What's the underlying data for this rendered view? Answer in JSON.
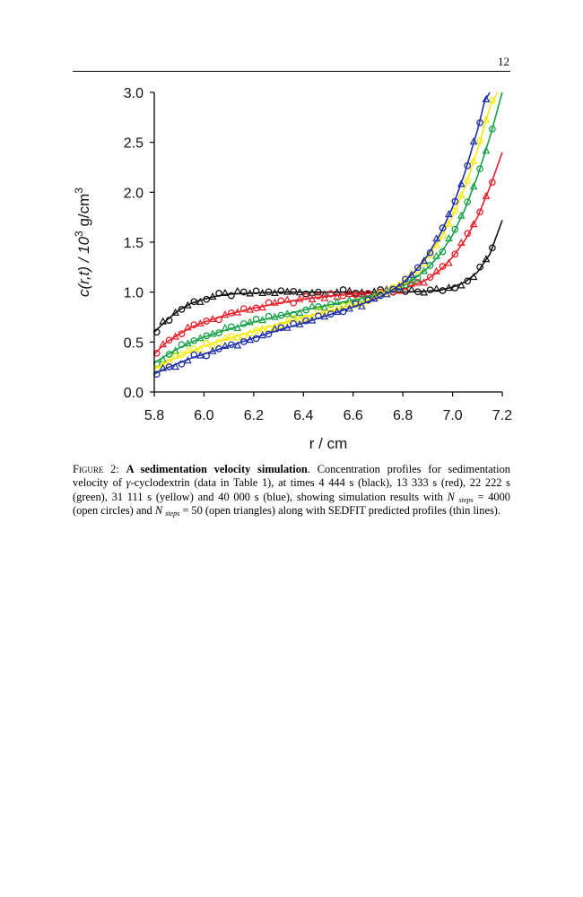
{
  "page": {
    "number": "12"
  },
  "figure": {
    "caption": {
      "label": "Figure 2:",
      "title": "A sedimentation velocity simulation",
      "text_part1": ". Concentration profiles for sedimentation velocity of ",
      "greek": "γ",
      "text_part2": "-cyclodextrin (data in Table 1), at times 4 444 s (black), 13 333 s (red), 22 222 s (green), 31 111 s (yellow) and 40 000 s (blue), showing simulation results with ",
      "n1": "N",
      "sub1": "steps",
      "text_part3": " = 4000 (open circles) and ",
      "n2": "N",
      "sub2": "steps",
      "text_part4": " = 50 (open triangles) along with SEDFIT predicted profiles (thin lines)."
    }
  },
  "chart_data": {
    "type": "line",
    "xlabel": "r / cm",
    "ylabel_main": "c(r,t)  / 10",
    "ylabel_sup": "3",
    "ylabel_unit": " g/cm",
    "ylabel_unit_sup": "3",
    "xlim": [
      5.8,
      7.2
    ],
    "ylim": [
      0.0,
      3.0
    ],
    "xticks": [
      "5.8",
      "6.0",
      "6.2",
      "6.4",
      "6.6",
      "6.8",
      "7.0",
      "7.2"
    ],
    "yticks": [
      "0.0",
      "0.5",
      "1.0",
      "1.5",
      "2.0",
      "2.5",
      "3.0"
    ],
    "legend": "none",
    "markers": {
      "open_circles": "N_steps = 4000",
      "open_triangles": "N_steps = 50",
      "thin_lines": "SEDFIT predicted profiles"
    },
    "series": [
      {
        "name": "4 444 s",
        "color": "#111111",
        "x": [
          5.8,
          5.85,
          5.9,
          5.95,
          6.0,
          6.05,
          6.1,
          6.2,
          6.3,
          6.4,
          6.5,
          6.6,
          6.7,
          6.8,
          6.9,
          6.95,
          7.0,
          7.05,
          7.1,
          7.15,
          7.2
        ],
        "y": [
          0.6,
          0.72,
          0.82,
          0.89,
          0.93,
          0.96,
          0.98,
          0.99,
          1.0,
          1.0,
          1.0,
          1.0,
          1.0,
          1.0,
          1.01,
          1.02,
          1.05,
          1.1,
          1.2,
          1.38,
          1.72
        ]
      },
      {
        "name": "13 333 s",
        "color": "#e8202a",
        "x": [
          5.8,
          5.85,
          5.9,
          5.95,
          6.0,
          6.1,
          6.2,
          6.3,
          6.4,
          6.5,
          6.6,
          6.7,
          6.8,
          6.9,
          6.95,
          7.0,
          7.05,
          7.1,
          7.15,
          7.2
        ],
        "y": [
          0.38,
          0.5,
          0.58,
          0.65,
          0.7,
          0.78,
          0.84,
          0.89,
          0.93,
          0.96,
          0.98,
          0.99,
          1.03,
          1.13,
          1.22,
          1.35,
          1.52,
          1.75,
          2.05,
          2.4
        ]
      },
      {
        "name": "22 222 s",
        "color": "#16a046",
        "x": [
          5.8,
          5.85,
          5.9,
          5.95,
          6.0,
          6.1,
          6.2,
          6.3,
          6.4,
          6.5,
          6.6,
          6.7,
          6.8,
          6.85,
          6.9,
          6.95,
          7.0,
          7.05,
          7.1,
          7.15,
          7.2
        ],
        "y": [
          0.29,
          0.37,
          0.44,
          0.5,
          0.55,
          0.63,
          0.7,
          0.76,
          0.82,
          0.87,
          0.92,
          0.97,
          1.06,
          1.14,
          1.24,
          1.38,
          1.57,
          1.83,
          2.16,
          2.55,
          3.0
        ]
      },
      {
        "name": "31 111 s",
        "color": "#f5ea0c",
        "x": [
          5.8,
          5.85,
          5.9,
          5.95,
          6.0,
          6.1,
          6.2,
          6.3,
          6.4,
          6.5,
          6.6,
          6.7,
          6.8,
          6.85,
          6.9,
          6.95,
          7.0,
          7.05,
          7.1,
          7.15,
          7.18
        ],
        "y": [
          0.23,
          0.3,
          0.36,
          0.41,
          0.46,
          0.54,
          0.61,
          0.68,
          0.75,
          0.81,
          0.87,
          0.95,
          1.1,
          1.21,
          1.35,
          1.53,
          1.76,
          2.05,
          2.42,
          2.85,
          3.0
        ]
      },
      {
        "name": "40 000 s",
        "color": "#1f2fa8",
        "x": [
          5.8,
          5.85,
          5.9,
          5.95,
          6.0,
          6.1,
          6.2,
          6.3,
          6.4,
          6.5,
          6.6,
          6.7,
          6.75,
          6.8,
          6.85,
          6.9,
          6.95,
          7.0,
          7.05,
          7.1,
          7.13,
          7.15
        ],
        "y": [
          0.18,
          0.24,
          0.29,
          0.34,
          0.38,
          0.46,
          0.54,
          0.62,
          0.69,
          0.77,
          0.85,
          0.94,
          1.01,
          1.09,
          1.21,
          1.37,
          1.58,
          1.85,
          2.2,
          2.62,
          2.92,
          3.0
        ]
      }
    ]
  }
}
